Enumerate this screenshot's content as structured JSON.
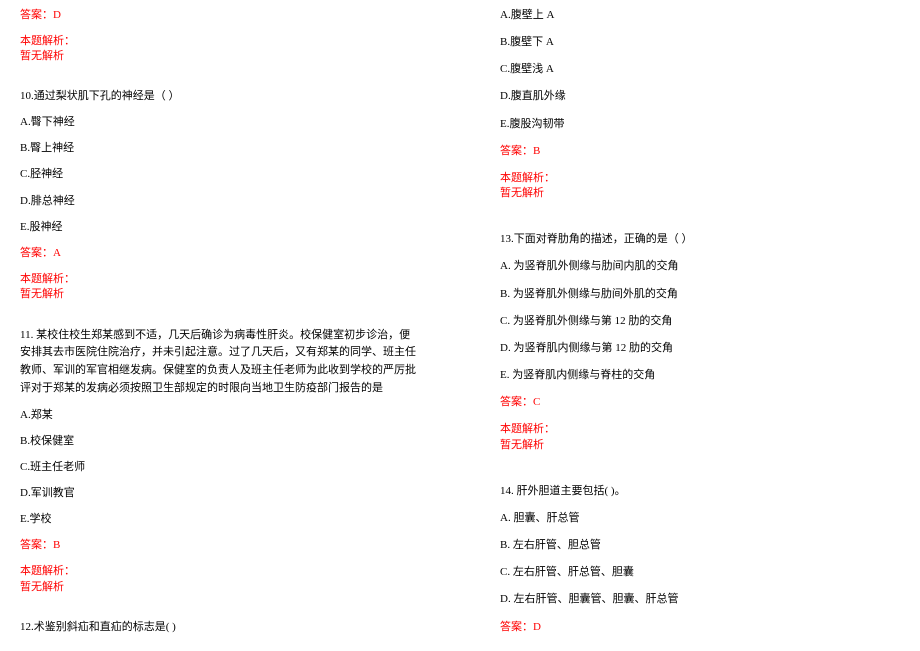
{
  "colors": {
    "text": "#000000",
    "accent": "#ff0000",
    "bg": "#ffffff"
  },
  "typography": {
    "font_family": "SimSun",
    "font_size_pt": 8
  },
  "left": {
    "ans9": "答案：D",
    "analysis_label": "本题解析：",
    "analysis_none": "暂无解析",
    "q10": {
      "stem": "10.通过梨状肌下孔的神经是（ ）",
      "A": "A.臀下神经",
      "B": "B.臀上神经",
      "C": "C.胫神经",
      "D": "D.腓总神经",
      "E": "E.股神经",
      "ans": "答案：A"
    },
    "q11": {
      "stem": "11. 某校住校生郑某感到不适，几天后确诊为病毒性肝炎。校保健室初步诊治，便安排其去市医院住院治疗，并未引起注意。过了几天后，又有郑某的同学、班主任教师、军训的军官相继发病。保健室的负责人及班主任老师为此收到学校的严厉批评对于郑某的发病必须按照卫生部规定的时限向当地卫生防疫部门报告的是",
      "A": "A.郑某",
      "B": "B.校保健室",
      "C": "C.班主任老师",
      "D": "D.军训教官",
      "E": "E.学校",
      "ans": "答案：B"
    },
    "q12_stem": "12.术鉴别斜疝和直疝的标志是( )"
  },
  "right": {
    "q12_opts": {
      "A": "A.腹壁上 A",
      "B": "B.腹壁下 A",
      "C": "C.腹壁浅 A",
      "D": "D.腹直肌外缘",
      "E": "E.腹股沟韧带",
      "ans": "答案：B"
    },
    "q13": {
      "stem": "13.下面对脊肋角的描述，正确的是（ ）",
      "A": "A. 为竖脊肌外侧缘与肋间内肌的交角",
      "B": "B. 为竖脊肌外侧缘与肋间外肌的交角",
      "C": "C. 为竖脊肌外侧缘与第 12 肋的交角",
      "D": "D. 为竖脊肌内侧缘与第 12 肋的交角",
      "E": "E. 为竖脊肌内侧缘与脊柱的交角",
      "ans": "答案：C"
    },
    "q14": {
      "stem": "14. 肝外胆道主要包括( )。",
      "A": "A. 胆囊、肝总管",
      "B": "B. 左右肝管、胆总管",
      "C": "C. 左右肝管、肝总管、胆囊",
      "D": "D. 左右肝管、胆囊管、胆囊、肝总管",
      "ans": "答案：D"
    },
    "analysis_label": "本题解析：",
    "analysis_none": "暂无解析"
  }
}
